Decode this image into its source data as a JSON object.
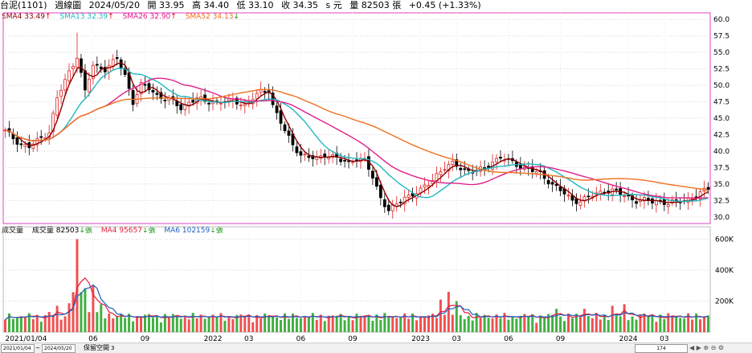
{
  "header": {
    "name": "台泥(1101)",
    "period": "週線圖",
    "date": "2024/05/20",
    "open": "開 33.95",
    "high": "高 34.40",
    "low": "低 33.10",
    "close": "收 34.35",
    "unit": "s 元",
    "volume": "量 82503 張",
    "change": "+0.45 (+1.33%)"
  },
  "legend_price": [
    {
      "label": "SMA4 33.49",
      "arrow": "↑",
      "color": "#8b0000"
    },
    {
      "label": "SMA13 32.39",
      "arrow": "↑",
      "color": "#20b8c0"
    },
    {
      "label": "SMA26 32.90",
      "arrow": "↑",
      "color": "#e0208a"
    },
    {
      "label": "SMA52 34.13",
      "arrow": "↓",
      "color": "#f07020"
    }
  ],
  "legend_volume": [
    {
      "label": "成交量",
      "arrow": "",
      "color": "#333333"
    },
    {
      "label": "成交量 82503",
      "arrow": "↓張",
      "color": "#333333"
    },
    {
      "label": "MA4 95657",
      "arrow": "↓張",
      "color": "#e0203a"
    },
    {
      "label": "MA6 102159",
      "arrow": "↓張",
      "color": "#2060c0"
    }
  ],
  "bottom": {
    "start_date": "2021/01/04",
    "tilde": "~",
    "end_date": "2024/05/20",
    "space_label": "保留空間",
    "space_value": "3",
    "zoom": "174"
  },
  "chart_data": [
    {
      "type": "candlestick",
      "ylim": [
        29,
        61
      ],
      "yticks": [
        "60.0",
        "57.5",
        "55.0",
        "52.5",
        "50.0",
        "47.5",
        "45.0",
        "42.5",
        "40.0",
        "37.5",
        "35.0",
        "32.5",
        "30.0"
      ],
      "xticks": [
        {
          "label": "2021/01/04",
          "week": 0
        },
        {
          "label": "06",
          "week": 22
        },
        {
          "label": "09",
          "week": 35
        },
        {
          "label": "2022",
          "week": 52
        },
        {
          "label": "03",
          "week": 61
        },
        {
          "label": "06",
          "week": 74
        },
        {
          "label": "09",
          "week": 87
        },
        {
          "label": "2023",
          "week": 104
        },
        {
          "label": "03",
          "week": 113
        },
        {
          "label": "06",
          "week": 126
        },
        {
          "label": "09",
          "week": 139
        },
        {
          "label": "2024",
          "week": 156
        },
        {
          "label": "03",
          "week": 165
        }
      ],
      "weeks": 177,
      "anchors": [
        [
          0,
          43
        ],
        [
          4,
          41
        ],
        [
          6,
          40.6
        ],
        [
          9,
          42
        ],
        [
          11,
          43
        ],
        [
          13,
          48
        ],
        [
          16,
          52
        ],
        [
          18,
          54.5
        ],
        [
          20,
          49
        ],
        [
          22,
          53
        ],
        [
          25,
          52.5
        ],
        [
          28,
          54
        ],
        [
          30,
          51.5
        ],
        [
          32,
          47.5
        ],
        [
          34,
          50
        ],
        [
          36,
          49.5
        ],
        [
          38,
          48.5
        ],
        [
          40,
          48
        ],
        [
          42,
          47.5
        ],
        [
          44,
          46.5
        ],
        [
          46,
          47.5
        ],
        [
          48,
          48
        ],
        [
          50,
          47.5
        ],
        [
          52,
          47.5
        ],
        [
          54,
          47.5
        ],
        [
          56,
          47.5
        ],
        [
          58,
          47.5
        ],
        [
          60,
          47
        ],
        [
          62,
          48
        ],
        [
          64,
          49
        ],
        [
          66,
          49.3
        ],
        [
          67,
          47
        ],
        [
          70,
          43
        ],
        [
          72,
          41
        ],
        [
          74,
          39.5
        ],
        [
          76,
          39
        ],
        [
          78,
          38.8
        ],
        [
          80,
          39.5
        ],
        [
          82,
          39.2
        ],
        [
          84,
          38.5
        ],
        [
          86,
          38.3
        ],
        [
          88,
          39
        ],
        [
          90,
          38.5
        ],
        [
          92,
          36
        ],
        [
          94,
          33
        ],
        [
          96,
          31
        ],
        [
          98,
          31.8
        ],
        [
          100,
          33
        ],
        [
          102,
          33.5
        ],
        [
          104,
          34
        ],
        [
          106,
          35
        ],
        [
          108,
          36.5
        ],
        [
          110,
          37.5
        ],
        [
          112,
          38
        ],
        [
          114,
          37.5
        ],
        [
          116,
          37
        ],
        [
          118,
          37
        ],
        [
          120,
          37.3
        ],
        [
          122,
          38.5
        ],
        [
          124,
          39
        ],
        [
          126,
          38.5
        ],
        [
          128,
          38
        ],
        [
          130,
          37.5
        ],
        [
          132,
          37
        ],
        [
          134,
          36.5
        ],
        [
          136,
          35.5
        ],
        [
          138,
          34.5
        ],
        [
          140,
          33.5
        ],
        [
          142,
          32.5
        ],
        [
          144,
          32.5
        ],
        [
          146,
          33
        ],
        [
          148,
          33.5
        ],
        [
          150,
          34
        ],
        [
          152,
          34
        ],
        [
          154,
          33.5
        ],
        [
          156,
          33
        ],
        [
          158,
          32.5
        ],
        [
          160,
          32.5
        ],
        [
          162,
          32.3
        ],
        [
          164,
          32.5
        ],
        [
          166,
          32
        ],
        [
          168,
          32.3
        ],
        [
          170,
          32.5
        ],
        [
          172,
          33
        ],
        [
          174,
          33.5
        ],
        [
          176,
          34.35
        ]
      ],
      "spikes": [
        [
          18,
          58
        ],
        [
          13,
          48.5
        ]
      ],
      "series": [
        {
          "name": "SMA4",
          "period": 4,
          "color": "#8b0000"
        },
        {
          "name": "SMA13",
          "period": 13,
          "color": "#20b8c0"
        },
        {
          "name": "SMA26",
          "period": 26,
          "color": "#e0208a"
        },
        {
          "name": "SMA52",
          "period": 52,
          "color": "#f07020"
        }
      ],
      "markers": [
        [
          150,
          29
        ],
        [
          178,
          29
        ],
        [
          199,
          29
        ],
        [
          201,
          29
        ],
        [
          213,
          29
        ]
      ]
    },
    {
      "type": "bar",
      "ylim": [
        0,
        680
      ],
      "yticks": [
        "600K",
        "400K",
        "200K"
      ],
      "ytick_values": [
        600,
        400,
        200
      ],
      "last_value": 82.503,
      "peaks": [
        [
          18,
          600
        ],
        [
          20,
          280
        ],
        [
          22,
          300
        ],
        [
          24,
          180
        ],
        [
          13,
          170
        ],
        [
          11,
          130
        ],
        [
          26,
          120
        ],
        [
          109,
          210
        ],
        [
          111,
          260
        ],
        [
          113,
          200
        ],
        [
          152,
          170
        ],
        [
          155,
          180
        ],
        [
          176,
          230
        ],
        [
          184,
          260
        ],
        [
          138,
          150
        ],
        [
          145,
          150
        ],
        [
          160,
          120
        ]
      ],
      "series": [
        {
          "name": "MA4",
          "period": 4,
          "color": "#e0203a"
        },
        {
          "name": "MA6",
          "period": 6,
          "color": "#2060c0"
        }
      ]
    }
  ]
}
